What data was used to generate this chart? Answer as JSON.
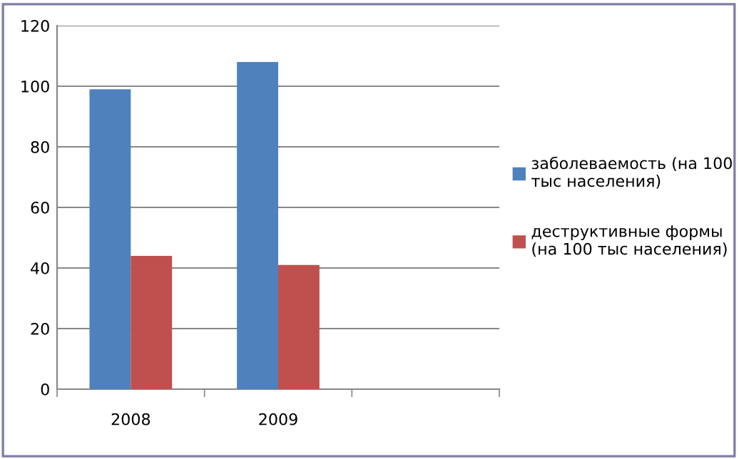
{
  "chart_data": {
    "type": "bar",
    "categories": [
      "2008",
      "2009",
      null
    ],
    "series": [
      {
        "name": "заболеваемость (на 100\nтыс населения)",
        "color": "#4f81bd",
        "values": [
          99,
          108,
          null
        ]
      },
      {
        "name": "деструктивные формы\n(на 100 тыс населения)",
        "color": "#c0504d",
        "values": [
          44,
          41,
          null
        ]
      }
    ],
    "ylim": [
      0,
      120
    ],
    "yticks": [
      0,
      20,
      40,
      60,
      80,
      100,
      120
    ],
    "grid": "y",
    "legend": "right"
  }
}
